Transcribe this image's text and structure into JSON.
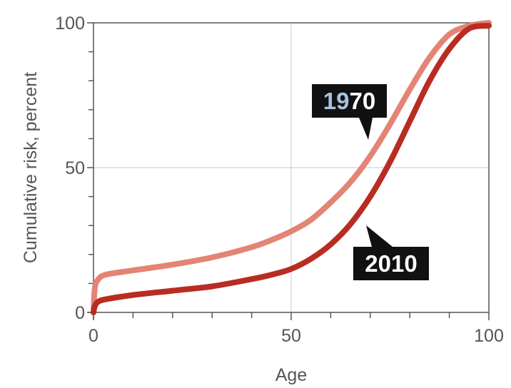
{
  "chart_data": {
    "type": "line",
    "xlabel": "Age",
    "ylabel": "Cumulative risk, percent",
    "xlim": [
      0,
      100
    ],
    "ylim": [
      0,
      100
    ],
    "x_ticks": [
      "0",
      "50",
      "100"
    ],
    "y_ticks": [
      "0",
      "50",
      "100"
    ],
    "grid": "major lines at 50",
    "series": [
      {
        "name": "1970",
        "color": "#e38474",
        "points": [
          [
            0,
            0
          ],
          [
            0.3,
            8
          ],
          [
            1,
            11
          ],
          [
            3,
            13
          ],
          [
            10,
            14.5
          ],
          [
            20,
            16.5
          ],
          [
            30,
            19
          ],
          [
            40,
            22.5
          ],
          [
            45,
            25
          ],
          [
            50,
            28
          ],
          [
            55,
            32
          ],
          [
            60,
            38
          ],
          [
            65,
            45
          ],
          [
            70,
            54
          ],
          [
            75,
            65
          ],
          [
            80,
            77
          ],
          [
            85,
            88
          ],
          [
            90,
            96
          ],
          [
            95,
            99
          ],
          [
            100,
            100
          ]
        ]
      },
      {
        "name": "2010",
        "color": "#b82c22",
        "points": [
          [
            0,
            0
          ],
          [
            0.3,
            2
          ],
          [
            1,
            3.5
          ],
          [
            3,
            4.5
          ],
          [
            10,
            6
          ],
          [
            20,
            7.5
          ],
          [
            30,
            9
          ],
          [
            40,
            11.5
          ],
          [
            45,
            13
          ],
          [
            50,
            15
          ],
          [
            55,
            18.5
          ],
          [
            60,
            23.5
          ],
          [
            65,
            30.5
          ],
          [
            70,
            40
          ],
          [
            75,
            52
          ],
          [
            80,
            66
          ],
          [
            85,
            80
          ],
          [
            90,
            91
          ],
          [
            95,
            98
          ],
          [
            100,
            99
          ]
        ]
      }
    ],
    "labels": [
      {
        "text_prefix": "19",
        "text_suffix": "70",
        "prefix_color": "#a6c4df",
        "text_color": "#ffffff",
        "box_color": "#111111"
      },
      {
        "text": "2010",
        "text_color": "#ffffff",
        "box_color": "#111111"
      }
    ]
  }
}
